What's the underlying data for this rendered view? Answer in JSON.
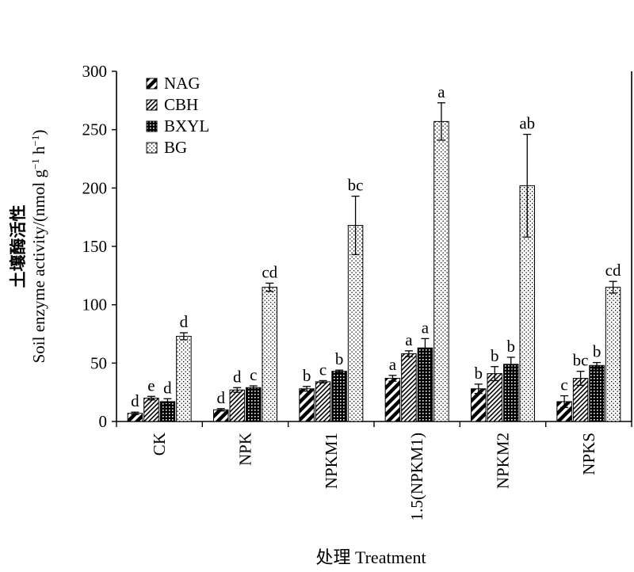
{
  "chart_data": {
    "type": "bar",
    "xlabel": "处理 Treatment",
    "ylabel_cn": "土壤酶活性",
    "ylabel_en": "Soil enzyme activity/(nmol  g",
    "ylabel_unit_parts": [
      "Soil enzyme activity/(nmol  g",
      "−1",
      " h",
      "−1",
      ")"
    ],
    "ylim": [
      0,
      300
    ],
    "yticks": [
      0,
      50,
      100,
      150,
      200,
      250,
      300
    ],
    "ytick_labels": [
      "0",
      "50",
      "100",
      "150",
      "200",
      "250",
      "300"
    ],
    "categories": [
      "CK",
      "NPK",
      "NPKM1",
      "1.5(NPKM1)",
      "NPKM2",
      "NPKS"
    ],
    "legend_position": "top-left",
    "series": [
      {
        "name": "NAG",
        "pattern": "diagonal",
        "values": [
          7,
          10,
          28,
          37,
          28,
          17
        ],
        "errors": [
          1,
          1,
          2,
          2.5,
          4,
          5
        ],
        "letters": [
          "d",
          "d",
          "b",
          "a",
          "b",
          "c"
        ]
      },
      {
        "name": "CBH",
        "pattern": "fine-diagonal",
        "values": [
          20,
          27,
          34,
          58,
          41,
          37
        ],
        "errors": [
          1.5,
          2,
          1,
          2.5,
          6,
          6
        ],
        "letters": [
          "e",
          "d",
          "c",
          "a",
          "b",
          "bc"
        ]
      },
      {
        "name": "BXYL",
        "pattern": "dense-dots",
        "values": [
          17,
          29,
          43,
          63,
          49,
          48
        ],
        "errors": [
          2.5,
          1.5,
          1,
          8,
          6,
          2.5
        ],
        "letters": [
          "d",
          "c",
          "b",
          "a",
          "b",
          "b"
        ]
      },
      {
        "name": "BG",
        "pattern": "sparse-dots",
        "values": [
          73,
          115,
          168,
          257,
          202,
          115
        ],
        "errors": [
          3,
          3.5,
          25,
          16,
          44,
          5
        ],
        "letters": [
          "d",
          "cd",
          "bc",
          "a",
          "ab",
          "cd"
        ]
      }
    ]
  }
}
